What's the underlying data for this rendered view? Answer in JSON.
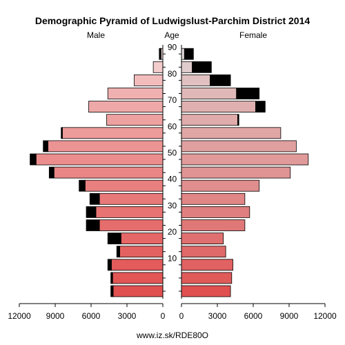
{
  "chart_data": {
    "type": "population_pyramid",
    "title": "Demographic Pyramid of Ludwigslust-Parchim District 2014",
    "left_label": "Male",
    "center_label": "Age",
    "right_label": "Female",
    "footer": "www.iz.sk/RDE80O",
    "age_ticks": [
      90,
      80,
      70,
      60,
      50,
      40,
      30,
      20,
      10
    ],
    "male_axis_ticks": [
      "12000",
      "9000",
      "6000",
      "3000",
      "0"
    ],
    "female_axis_ticks": [
      "0",
      "3000",
      "6000",
      "9000",
      "12000"
    ],
    "xlim": [
      0,
      12000
    ],
    "age_groups": [
      "0-4",
      "5-9",
      "10-14",
      "15-19",
      "20-24",
      "25-29",
      "30-34",
      "35-39",
      "40-44",
      "45-49",
      "50-54",
      "55-59",
      "60-64",
      "65-69",
      "70-74",
      "75-79",
      "80-84",
      "85-89",
      "90+"
    ],
    "male_base": [
      4150,
      4200,
      4300,
      3600,
      3500,
      5300,
      5600,
      5300,
      6500,
      9100,
      10600,
      9600,
      8400,
      4700,
      6200,
      4600,
      2400,
      800,
      150
    ],
    "male_excess": [
      200,
      150,
      300,
      250,
      1100,
      1100,
      800,
      800,
      500,
      400,
      500,
      400,
      100,
      0,
      0,
      0,
      0,
      0,
      150
    ],
    "female_base": [
      4100,
      4200,
      4300,
      3700,
      3500,
      5300,
      5700,
      5300,
      6500,
      9100,
      10600,
      9600,
      8300,
      4700,
      6200,
      4600,
      2400,
      900,
      250
    ],
    "female_excess": [
      0,
      0,
      0,
      0,
      0,
      0,
      0,
      0,
      0,
      0,
      0,
      0,
      0,
      100,
      800,
      1900,
      1700,
      1600,
      750
    ],
    "male_colors": [
      "#e05050",
      "#e25656",
      "#e35b5b",
      "#e46161",
      "#e56767",
      "#e66d6d",
      "#e77373",
      "#e87979",
      "#e98080",
      "#ea8686",
      "#eb8d8d",
      "#ec9393",
      "#ed9a9a",
      "#eea1a1",
      "#efa8a8",
      "#f0b0b0",
      "#f2bcbc",
      "#f4cccc",
      "#f6dada"
    ],
    "female_colors": [
      "#e05050",
      "#e05a5a",
      "#e06262",
      "#e06969",
      "#e07070",
      "#e07878",
      "#e07f7f",
      "#e08686",
      "#e08e8e",
      "#e09494",
      "#e09a9a",
      "#e0a0a0",
      "#e0a6a6",
      "#e0abab",
      "#e0b0b0",
      "#e0b8b8",
      "#e0c0c0",
      "#e0cccc",
      "#e0d8d8"
    ],
    "excess_color": "#000000"
  }
}
